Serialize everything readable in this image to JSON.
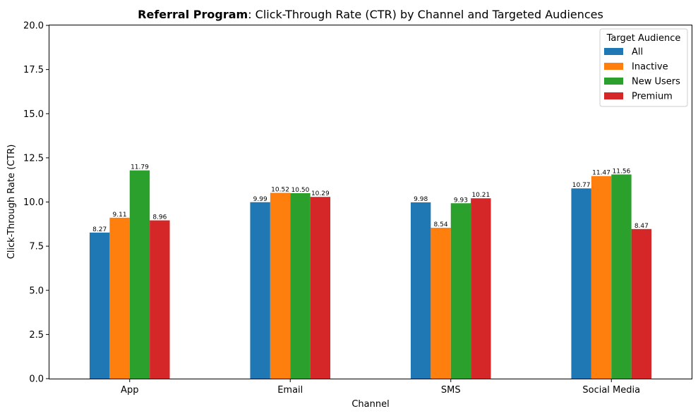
{
  "chart_data": {
    "type": "bar",
    "title_bold": "Referral Program",
    "title_rest": ": Click-Through Rate (CTR) by Channel and Targeted Audiences",
    "xlabel": "Channel",
    "ylabel": "Click-Through Rate (CTR)",
    "categories": [
      "App",
      "Email",
      "SMS",
      "Social Media"
    ],
    "ylim": [
      0,
      20.0
    ],
    "yticks": [
      "0.0",
      "2.5",
      "5.0",
      "7.5",
      "10.0",
      "12.5",
      "15.0",
      "17.5",
      "20.0"
    ],
    "legend_title": "Target Audience",
    "legend_position": "top-right",
    "grid": false,
    "series": [
      {
        "name": "All",
        "color": "#1f77b4",
        "values": [
          8.27,
          9.99,
          9.98,
          10.77
        ],
        "labels": [
          "8.27",
          "9.99",
          "9.98",
          "10.77"
        ]
      },
      {
        "name": "Inactive",
        "color": "#ff7f0e",
        "values": [
          9.11,
          10.52,
          8.54,
          11.47
        ],
        "labels": [
          "9.11",
          "10.52",
          "8.54",
          "11.47"
        ]
      },
      {
        "name": "New Users",
        "color": "#2ca02c",
        "values": [
          11.79,
          10.5,
          9.93,
          11.56
        ],
        "labels": [
          "11.79",
          "10.50",
          "9.93",
          "11.56"
        ]
      },
      {
        "name": "Premium",
        "color": "#d62728",
        "values": [
          8.96,
          10.29,
          10.21,
          8.47
        ],
        "labels": [
          "8.96",
          "10.29",
          "10.21",
          "8.47"
        ]
      }
    ]
  }
}
